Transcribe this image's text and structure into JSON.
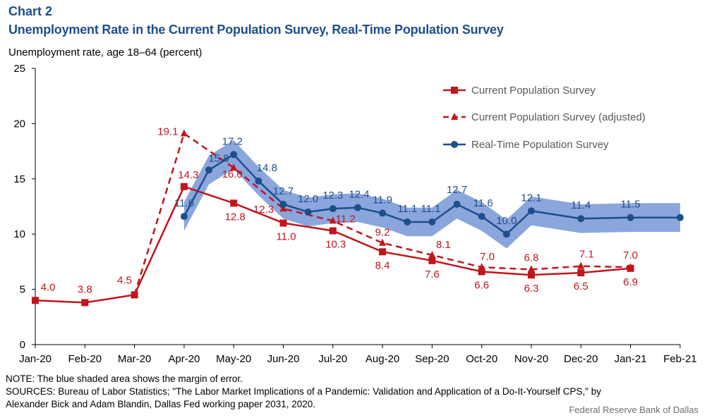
{
  "header": {
    "kicker": "Chart 2",
    "title": "Unemployment Rate in the Current Population Survey, Real-Time Population Survey"
  },
  "footer": {
    "note": "NOTE: The blue shaded area shows the margin of error.",
    "sources_1": "SOURCES: Bureau of Labor Statistics; \"The Labor Market Implications of a Pandemic: Validation and Application of a Do-It-Yourself CPS,\" by",
    "sources_2": "Alexander Bick and Adam Blandin, Dallas Fed working paper 2031, 2020.",
    "credit": "Federal Reserve Bank of Dallas"
  },
  "chart_data": {
    "type": "line",
    "ylabel": "Unemployment rate, age 18–64 (percent)",
    "xlabel": "",
    "ylim": [
      0,
      25
    ],
    "yticks": [
      0,
      5,
      10,
      15,
      20,
      25
    ],
    "grid": false,
    "legend_position": "top-right",
    "categories": [
      "Jan-20",
      "Feb-20",
      "Mar-20",
      "Apr-20",
      "May-20",
      "Jun-20",
      "Jul-20",
      "Aug-20",
      "Sep-20",
      "Oct-20",
      "Nov-20",
      "Dec-20",
      "Jan-21",
      "Feb-21"
    ],
    "colors": {
      "cps": "#c0161c",
      "rtps": "#1f4e8c",
      "band": "#8aa6dc"
    },
    "series": [
      {
        "name": "Current Population Survey",
        "style": "solid-square",
        "x": [
          "Jan-20",
          "Feb-20",
          "Mar-20",
          "Apr-20",
          "May-20",
          "Jun-20",
          "Jul-20",
          "Aug-20",
          "Sep-20",
          "Oct-20",
          "Nov-20",
          "Dec-20",
          "Jan-21"
        ],
        "values": [
          4.0,
          3.8,
          4.5,
          14.3,
          12.8,
          11.0,
          10.3,
          8.4,
          7.6,
          6.6,
          6.3,
          6.5,
          6.9
        ]
      },
      {
        "name": "Current Population Survey (adjusted)",
        "style": "dashed-triangle",
        "x": [
          "Mar-20",
          "Apr-20",
          "May-20",
          "Jun-20",
          "Jul-20",
          "Aug-20",
          "Sep-20",
          "Oct-20",
          "Nov-20",
          "Dec-20",
          "Jan-21"
        ],
        "values": [
          4.5,
          19.1,
          16.0,
          12.3,
          11.2,
          9.2,
          8.1,
          7.0,
          6.8,
          7.1,
          7.0
        ]
      },
      {
        "name": "Real-Time Population Survey",
        "style": "solid-circle",
        "x": [
          "Apr-20",
          "Apr-20b",
          "May-20a",
          "May-20",
          "May-20b",
          "Jun-20",
          "Jun-20b",
          "Jul-20",
          "Jul-20b",
          "Aug-20",
          "Aug-20b",
          "Sep-20",
          "Sep-20b",
          "Oct-20",
          "Nov-20",
          "Dec-20",
          "Jan-21",
          "Feb-21"
        ],
        "xpos": [
          3.0,
          3.5,
          4.0,
          4.5,
          5.0,
          5.5,
          6.0,
          6.5,
          7.0,
          7.5,
          8.0,
          8.5,
          9.0,
          9.5,
          10.0,
          11.0,
          12.0,
          13.0
        ],
        "values": [
          11.6,
          15.8,
          17.2,
          14.8,
          12.7,
          12.0,
          12.3,
          12.4,
          11.9,
          11.1,
          11.1,
          12.7,
          11.6,
          10.0,
          12.1,
          11.4,
          11.5,
          11.5
        ],
        "margin_of_error": 1.3
      }
    ],
    "data_labels": {
      "cps": [
        "4.0",
        "3.8",
        "4.5",
        "14.3",
        "12.8",
        "11.0",
        "10.3",
        "8.4",
        "7.6",
        "6.6",
        "6.3",
        "6.5",
        "6.9"
      ],
      "adjusted": [
        "19.1",
        "16.0",
        "12.3",
        "11.2",
        "9.2",
        "8.1",
        "7.0",
        "6.8",
        "7.1",
        "7.0"
      ],
      "rtps": [
        "11.6",
        "15.8",
        "17.2",
        "14.8",
        "12.7",
        "12.0",
        "12.3",
        "12.4",
        "11.9",
        "11.1",
        "11.1",
        "12.7",
        "11.6",
        "10.0",
        "12.1",
        "11.4",
        "11.5"
      ]
    }
  }
}
